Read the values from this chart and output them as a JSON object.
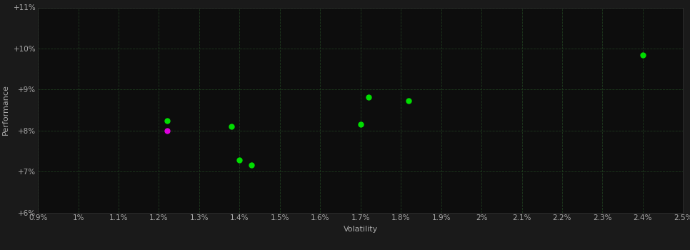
{
  "background_color": "#1a1a1a",
  "plot_bg_color": "#0d0d0d",
  "grid_color": "#1e3a1e",
  "axis_label_color": "#aaaaaa",
  "tick_label_color": "#aaaaaa",
  "xlabel": "Volatility",
  "ylabel": "Performance",
  "xlim": [
    0.009,
    0.025
  ],
  "ylim": [
    0.06,
    0.11
  ],
  "xticks": [
    0.009,
    0.01,
    0.011,
    0.012,
    0.013,
    0.014,
    0.015,
    0.016,
    0.017,
    0.018,
    0.019,
    0.02,
    0.021,
    0.022,
    0.023,
    0.024,
    0.025
  ],
  "yticks": [
    0.06,
    0.07,
    0.08,
    0.09,
    0.1,
    0.11
  ],
  "green_points": [
    [
      0.0122,
      0.0823
    ],
    [
      0.0138,
      0.081
    ],
    [
      0.014,
      0.0728
    ],
    [
      0.0143,
      0.0716
    ],
    [
      0.017,
      0.0815
    ],
    [
      0.0172,
      0.0882
    ],
    [
      0.0182,
      0.0873
    ],
    [
      0.024,
      0.0985
    ]
  ],
  "magenta_points": [
    [
      0.0122,
      0.08
    ]
  ],
  "green_color": "#00dd00",
  "magenta_color": "#dd00dd",
  "marker_size": 36,
  "font_size_axis_label": 8,
  "font_size_tick": 7.5
}
